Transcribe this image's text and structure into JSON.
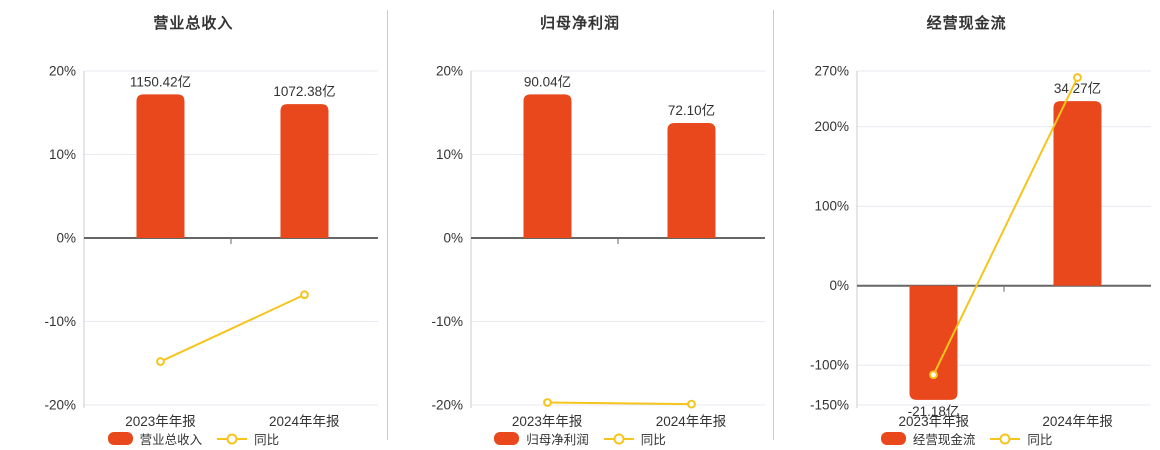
{
  "colors": {
    "bar": "#e8481c",
    "line": "#f5c51e",
    "grid": "#e6e9f2",
    "axis_line": "#cccccc",
    "zero_line": "#666666",
    "text": "#333333",
    "divider": "#cccccc",
    "background": "#ffffff"
  },
  "chart_data": [
    {
      "type": "bar",
      "title": "营业总收入",
      "categories": [
        "2023年年报",
        "2024年年报"
      ],
      "bars": {
        "name": "营业总收入",
        "unit": "亿",
        "values": [
          1150.42,
          1072.38
        ],
        "labels": [
          "1150.42亿",
          "1072.38亿"
        ]
      },
      "line": {
        "name": "同比",
        "unit": "%",
        "values": [
          -14.8,
          -6.8
        ]
      },
      "yaxis": {
        "ylim": [
          -20,
          20
        ],
        "ticks": [
          20,
          10,
          0,
          -10,
          -20
        ],
        "tick_labels": [
          "20%",
          "10%",
          "0%",
          "-10%",
          "-20%"
        ]
      },
      "legend": [
        "营业总收入",
        "同比"
      ],
      "grid": true,
      "legend_position": "bottom"
    },
    {
      "type": "bar",
      "title": "归母净利润",
      "categories": [
        "2023年年报",
        "2024年年报"
      ],
      "bars": {
        "name": "归母净利润",
        "unit": "亿",
        "values": [
          90.04,
          72.1
        ],
        "labels": [
          "90.04亿",
          "72.10亿"
        ]
      },
      "line": {
        "name": "同比",
        "unit": "%",
        "values": [
          -19.7,
          -19.9
        ]
      },
      "yaxis": {
        "ylim": [
          -20,
          20
        ],
        "ticks": [
          20,
          10,
          0,
          -10,
          -20
        ],
        "tick_labels": [
          "20%",
          "10%",
          "0%",
          "-10%",
          "-20%"
        ]
      },
      "legend": [
        "归母净利润",
        "同比"
      ],
      "grid": true,
      "legend_position": "bottom"
    },
    {
      "type": "bar",
      "title": "经营现金流",
      "categories": [
        "2023年年报",
        "2024年年报"
      ],
      "bars": {
        "name": "经营现金流",
        "unit": "亿",
        "values": [
          -21.18,
          34.27
        ],
        "labels": [
          "-21.18亿",
          "34.27亿"
        ]
      },
      "line": {
        "name": "同比",
        "unit": "%",
        "values": [
          -112.0,
          261.8
        ]
      },
      "yaxis": {
        "ylim": [
          -150,
          270
        ],
        "ticks": [
          270,
          200,
          100,
          0,
          -100,
          -150
        ],
        "tick_labels": [
          "270%",
          "200%",
          "100%",
          "0%",
          "-100%",
          "-150%"
        ]
      },
      "legend": [
        "经营现金流",
        "同比"
      ],
      "grid": true,
      "legend_position": "bottom"
    }
  ]
}
